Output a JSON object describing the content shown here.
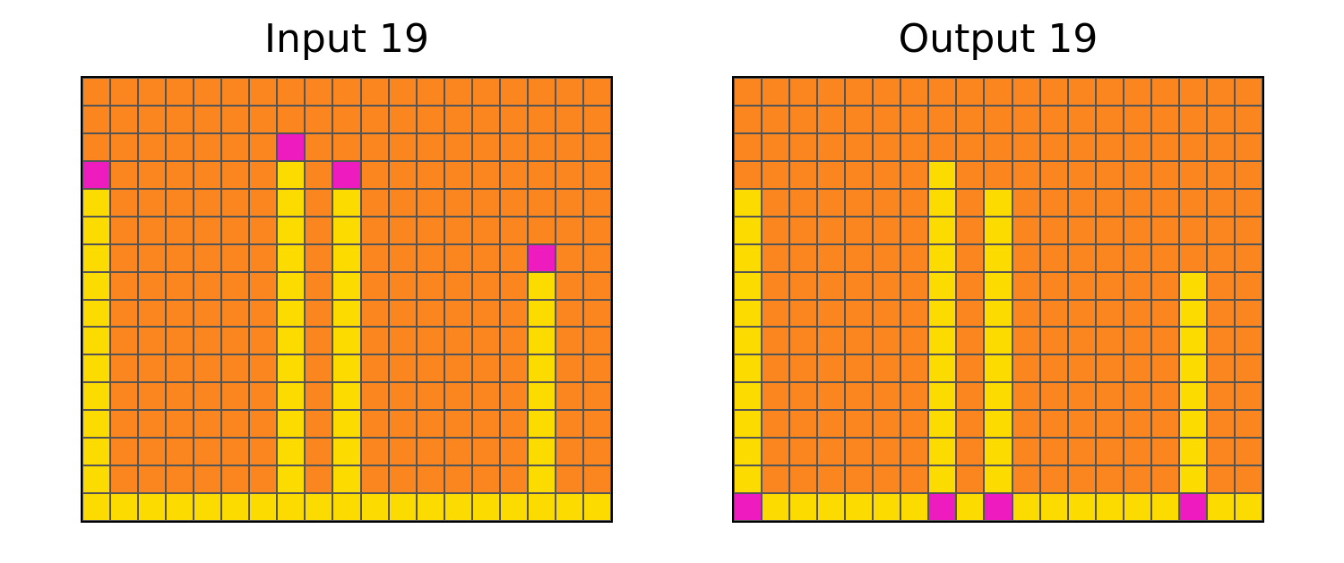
{
  "palette": {
    "O": "#fb861f",
    "Y": "#fcdb00",
    "M": "#ee1cbe"
  },
  "panels": [
    {
      "title": "Input 19",
      "rows": [
        "OOOOOOOOOOOOOOOOOOO",
        "OOOOOOOOOOOOOOOOOOO",
        "OOOOOOOMOOOOOOOOOOO",
        "MOOOOOOYOMOOOOOOOOO",
        "YOOOOOOYOYOOOOOOOOO",
        "YOOOOOOYOYOOOOOOOOO",
        "YOOOOOOYOYOOOOOOMOO",
        "YOOOOOOYOYOOOOOOYOO",
        "YOOOOOOYOYOOOOOOYOO",
        "YOOOOOOYOYOOOOOOYOO",
        "YOOOOOOYOYOOOOOOYOO",
        "YOOOOOOYOYOOOOOOYOO",
        "YOOOOOOYOYOOOOOOYOO",
        "YOOOOOOYOYOOOOOOYOO",
        "YOOOOOOYOYOOOOOOYOO",
        "YYYYYYYYYYYYYYYYYYY"
      ]
    },
    {
      "title": "Output 19",
      "rows": [
        "OOOOOOOOOOOOOOOOOOO",
        "OOOOOOOOOOOOOOOOOOO",
        "OOOOOOOOOOOOOOOOOOO",
        "OOOOOOOYOOOOOOOOOOO",
        "YOOOOOOYOYOOOOOOOOO",
        "YOOOOOOYOYOOOOOOOOO",
        "YOOOOOOYOYOOOOOOOOO",
        "YOOOOOOYOYOOOOOOYOO",
        "YOOOOOOYOYOOOOOOYOO",
        "YOOOOOOYOYOOOOOOYOO",
        "YOOOOOOYOYOOOOOOYOO",
        "YOOOOOOYOYOOOOOOYOO",
        "YOOOOOOYOYOOOOOOYOO",
        "YOOOOOOYOYOOOOOOYOO",
        "YOOOOOOYOYOOOOOOYOO",
        "MYYYYYYMYMYYYYYYMYY"
      ]
    }
  ]
}
